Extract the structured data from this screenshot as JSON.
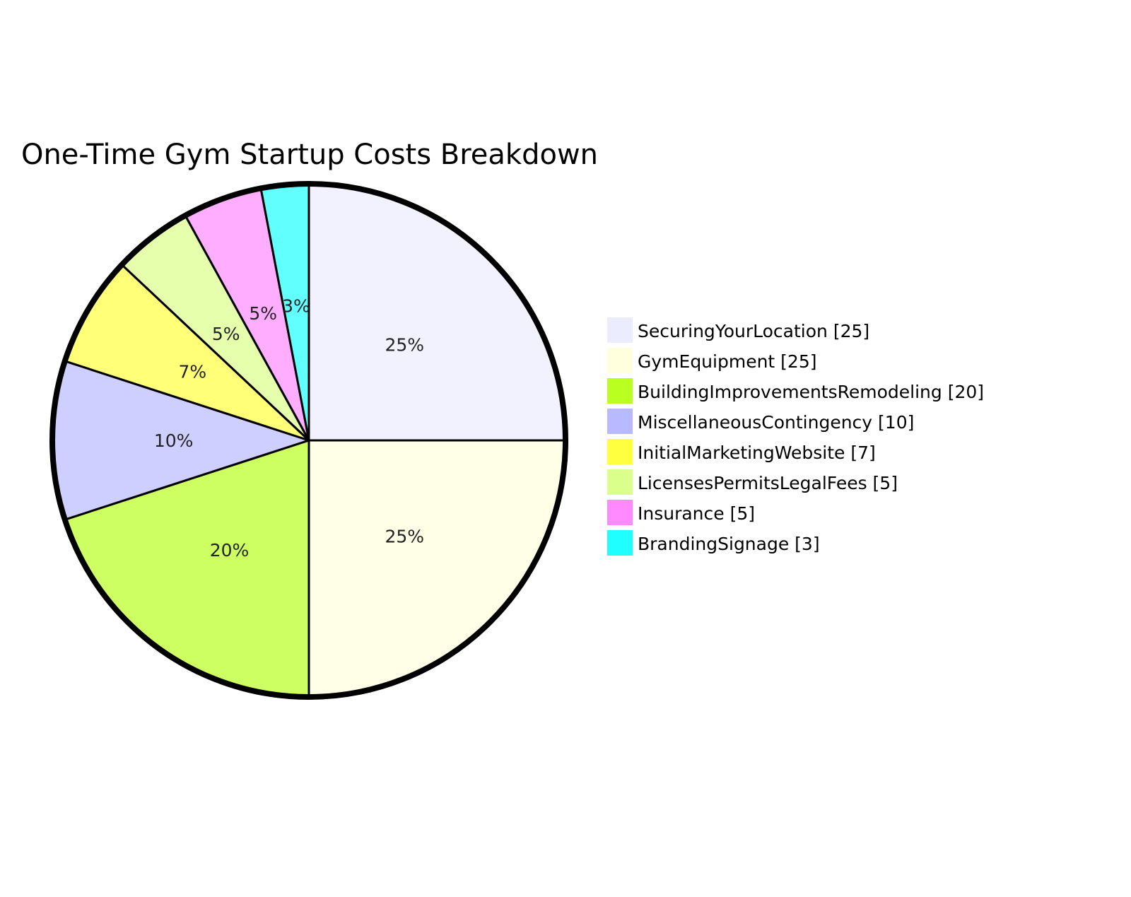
{
  "chart_data": {
    "type": "pie",
    "title": "One-Time Gym Startup Costs Breakdown",
    "categories": [
      "SecuringYourLocation",
      "GymEquipment",
      "BuildingImprovementsRemodeling",
      "MiscellaneousContingency",
      "InitialMarketingWebsite",
      "LicensesPermitsLegalFees",
      "Insurance",
      "BrandingSignage"
    ],
    "values": [
      25,
      25,
      20,
      10,
      7,
      5,
      5,
      3
    ],
    "colors": [
      "#ECECFF",
      "#FFFFDE",
      "#B9FF1F",
      "#B9B9FF",
      "#FFFF3F",
      "#DAFF8A",
      "#FF8AFF",
      "#1FFFFF"
    ],
    "legend_position": "right"
  }
}
